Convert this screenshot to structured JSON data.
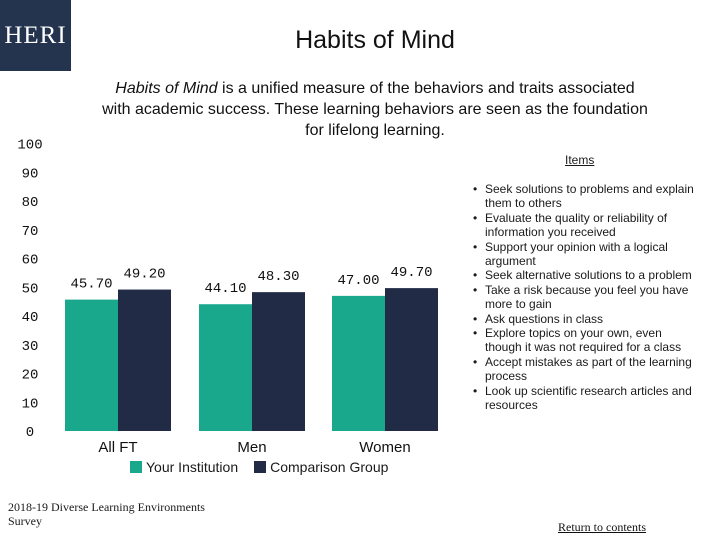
{
  "header": {
    "logo_text": "HERI",
    "title": "Habits of Mind"
  },
  "description": {
    "italic_part": "Habits of Mind",
    "rest": " is a unified measure of the behaviors and traits associated with academic success. These learning behaviors are seen as the foundation for lifelong learning."
  },
  "chart_data": {
    "type": "bar",
    "categories": [
      "All FT",
      "Men",
      "Women"
    ],
    "series": [
      {
        "name": "Your Institution",
        "values": [
          45.7,
          44.1,
          47.0
        ],
        "color": "#1aa88c"
      },
      {
        "name": "Comparison Group",
        "values": [
          49.2,
          48.3,
          49.7
        ],
        "color": "#212b45"
      }
    ],
    "value_labels": [
      [
        "45.70",
        "44.10",
        "47.00"
      ],
      [
        "49.20",
        "48.30",
        "49.70"
      ]
    ],
    "yticks": [
      0,
      10,
      20,
      30,
      40,
      50,
      60,
      70,
      80,
      90,
      100
    ],
    "ylim": [
      0,
      100
    ],
    "legend_position": "bottom",
    "grid": false
  },
  "items": {
    "title": "Items",
    "list": [
      "Seek solutions to problems and explain them to others",
      "Evaluate the quality or reliability of information you received",
      "Support your opinion with a logical argument",
      "Seek alternative solutions to a problem",
      "Take a risk because you feel you have more to gain",
      "Ask questions in class",
      "Explore topics on your own, even though it was not required for a class",
      "Accept mistakes as part of the learning process",
      "Look up scientific research articles and resources"
    ]
  },
  "footer": {
    "line1": "2018-19 Diverse Learning Environments",
    "line2": "Survey",
    "return_link": "Return to contents"
  }
}
